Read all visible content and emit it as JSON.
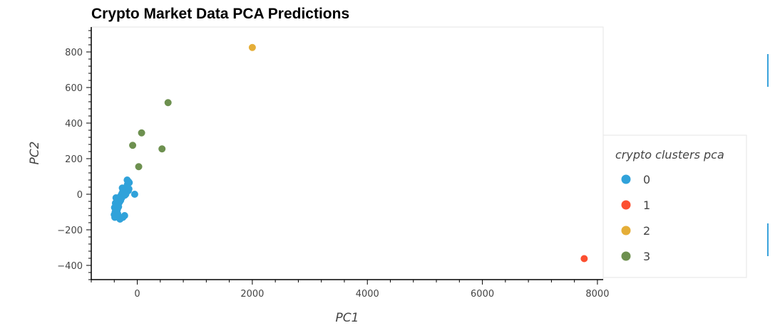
{
  "chart_data": {
    "type": "scatter",
    "title": "Crypto Market Data PCA Predictions",
    "xlabel": "PC1",
    "ylabel": "PC2",
    "xlim": [
      -800,
      8100
    ],
    "ylim": [
      -480,
      940
    ],
    "x_ticks": [
      0,
      2000,
      4000,
      6000,
      8000
    ],
    "x_tick_labels": [
      "0",
      "2000",
      "4000",
      "6000",
      "8000"
    ],
    "y_ticks": [
      -400,
      -200,
      0,
      200,
      400,
      600,
      800
    ],
    "y_tick_labels": [
      "−400",
      "−200",
      "0",
      "200",
      "400",
      "600",
      "800"
    ],
    "grid": false,
    "legend": {
      "title": "crypto clusters pca",
      "placement": "right"
    },
    "series": [
      {
        "name": "0",
        "color": "#30a2da",
        "points": [
          [
            -390,
            -130
          ],
          [
            -400,
            -115
          ],
          [
            -385,
            -100
          ],
          [
            -370,
            -90
          ],
          [
            -395,
            -75
          ],
          [
            -360,
            -60
          ],
          [
            -380,
            -50
          ],
          [
            -355,
            -40
          ],
          [
            -340,
            -30
          ],
          [
            -320,
            -25
          ],
          [
            -300,
            -15
          ],
          [
            -280,
            -5
          ],
          [
            -265,
            5
          ],
          [
            -250,
            15
          ],
          [
            -240,
            25
          ],
          [
            -260,
            35
          ],
          [
            -230,
            10
          ],
          [
            -215,
            -5
          ],
          [
            -200,
            0
          ],
          [
            -185,
            15
          ],
          [
            -190,
            40
          ],
          [
            -170,
            55
          ],
          [
            -160,
            60
          ],
          [
            -150,
            70
          ],
          [
            -140,
            65
          ],
          [
            -175,
            80
          ],
          [
            -155,
            20
          ],
          [
            -145,
            30
          ],
          [
            -45,
            0
          ],
          [
            -300,
            -140
          ],
          [
            -250,
            -130
          ],
          [
            -220,
            -120
          ],
          [
            -340,
            -110
          ],
          [
            -370,
            -20
          ],
          [
            -310,
            -45
          ],
          [
            -290,
            -35
          ],
          [
            -270,
            -20
          ],
          [
            -225,
            5
          ],
          [
            -345,
            -85
          ],
          [
            -325,
            -70
          ]
        ]
      },
      {
        "name": "1",
        "color": "#fc4f30",
        "points": [
          [
            7770,
            -362
          ]
        ]
      },
      {
        "name": "2",
        "color": "#e5ae38",
        "points": [
          [
            2000,
            825
          ]
        ]
      },
      {
        "name": "3",
        "color": "#6d904f",
        "points": [
          [
            535,
            515
          ],
          [
            75,
            345
          ],
          [
            -80,
            275
          ],
          [
            430,
            255
          ],
          [
            25,
            155
          ]
        ]
      }
    ]
  }
}
